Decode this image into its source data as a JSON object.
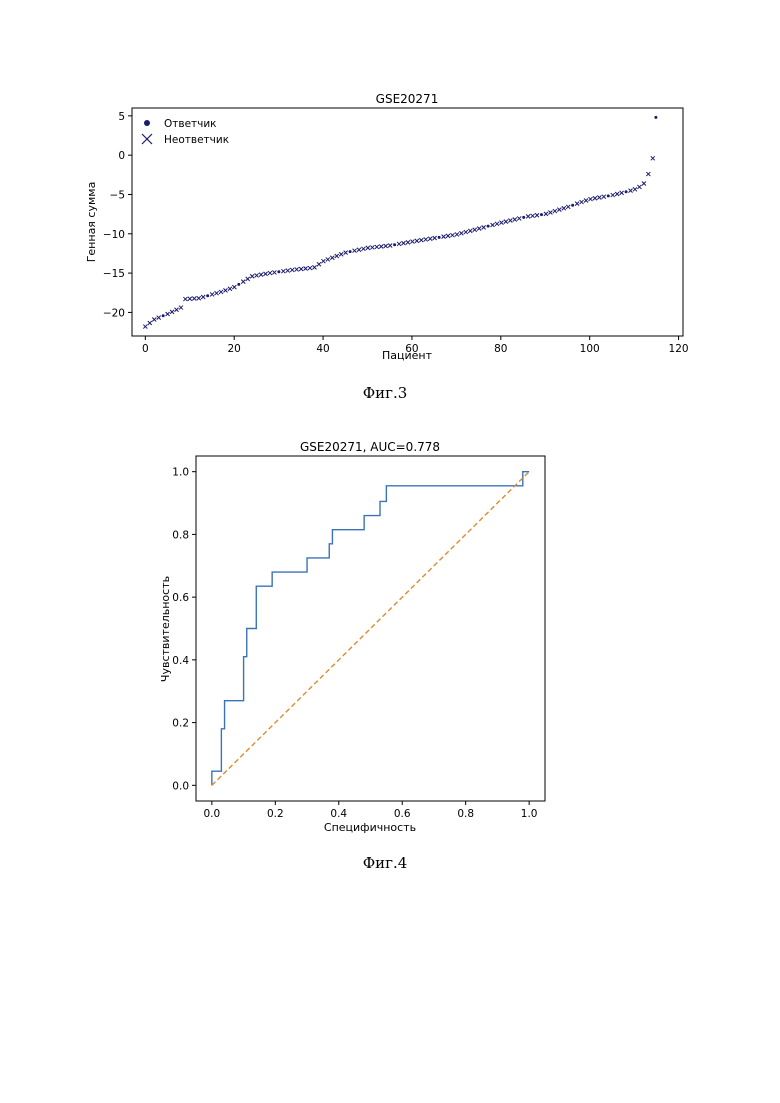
{
  "figure3": {
    "caption": "Фиг.3",
    "chart_data": {
      "type": "scatter",
      "title": "GSE20271",
      "xlabel": "Пациент",
      "ylabel": "Генная сумма",
      "xlim": [
        -3,
        121
      ],
      "ylim": [
        -23,
        6
      ],
      "xticks": [
        "0",
        "20",
        "40",
        "60",
        "80",
        "100",
        "120"
      ],
      "yticks": [
        "5",
        "0",
        "−5",
        "−10",
        "−15",
        "−20"
      ],
      "legend_position": "top-left",
      "legend": [
        {
          "label": "Ответчик",
          "marker": "dot"
        },
        {
          "label": "Неответчик",
          "marker": "x"
        }
      ],
      "color": "#1a1a6e",
      "curve_anchors": [
        [
          0,
          -21.8
        ],
        [
          2,
          -20.9
        ],
        [
          5,
          -20.2
        ],
        [
          8,
          -19.4
        ],
        [
          9,
          -18.3
        ],
        [
          12,
          -18.2
        ],
        [
          17,
          -17.4
        ],
        [
          20,
          -16.8
        ],
        [
          24,
          -15.4
        ],
        [
          28,
          -15.0
        ],
        [
          33,
          -14.6
        ],
        [
          38,
          -14.3
        ],
        [
          40,
          -13.5
        ],
        [
          45,
          -12.4
        ],
        [
          50,
          -11.8
        ],
        [
          55,
          -11.5
        ],
        [
          60,
          -11.0
        ],
        [
          70,
          -10.1
        ],
        [
          80,
          -8.6
        ],
        [
          86,
          -7.8
        ],
        [
          90,
          -7.5
        ],
        [
          95,
          -6.6
        ],
        [
          100,
          -5.6
        ],
        [
          105,
          -5.1
        ],
        [
          110,
          -4.4
        ],
        [
          112,
          -3.8
        ],
        [
          113,
          -2.8
        ],
        [
          113.6,
          -1.6
        ],
        [
          114.2,
          -0.4
        ]
      ],
      "n_points": 115,
      "responder_indices": [
        4,
        14,
        21,
        30,
        46,
        56,
        66,
        77,
        85,
        89,
        96,
        104,
        108
      ],
      "extra_points": [
        {
          "x": 114.9,
          "y": 4.8,
          "group": "Ответчик"
        }
      ]
    }
  },
  "figure4": {
    "caption": "Фиг.4",
    "chart_data": {
      "type": "line",
      "title": "GSE20271, AUC=0.778",
      "xlabel": "Специфичность",
      "ylabel": "Чувствительность",
      "xlim": [
        -0.05,
        1.05
      ],
      "ylim": [
        -0.05,
        1.05
      ],
      "xticks": [
        "0.0",
        "0.2",
        "0.4",
        "0.6",
        "0.8",
        "1.0"
      ],
      "yticks": [
        "0.0",
        "0.2",
        "0.4",
        "0.6",
        "0.8",
        "1.0"
      ],
      "series": [
        {
          "style": "solid",
          "color": "#3b73b9",
          "x": [
            0,
            0,
            0.03,
            0.03,
            0.04,
            0.04,
            0.1,
            0.1,
            0.11,
            0.11,
            0.14,
            0.14,
            0.19,
            0.19,
            0.3,
            0.3,
            0.37,
            0.37,
            0.38,
            0.38,
            0.48,
            0.48,
            0.53,
            0.53,
            0.55,
            0.55,
            0.98,
            0.98,
            1.0
          ],
          "y": [
            0,
            0.045,
            0.045,
            0.18,
            0.18,
            0.27,
            0.27,
            0.41,
            0.41,
            0.5,
            0.5,
            0.635,
            0.635,
            0.68,
            0.68,
            0.725,
            0.725,
            0.77,
            0.77,
            0.815,
            0.815,
            0.86,
            0.86,
            0.905,
            0.905,
            0.955,
            0.955,
            1.0,
            1.0
          ]
        },
        {
          "style": "dashed",
          "color": "#e08a2c",
          "x": [
            0,
            1
          ],
          "y": [
            0,
            1
          ]
        }
      ]
    }
  }
}
